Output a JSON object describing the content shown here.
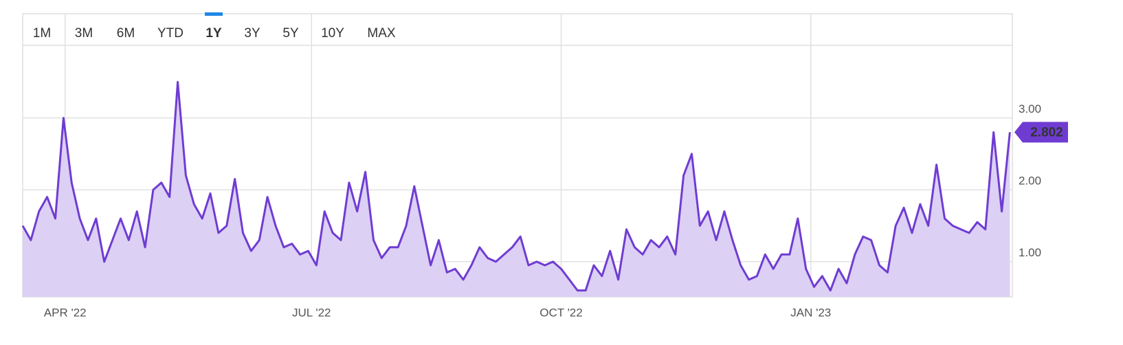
{
  "chart_data": {
    "type": "area",
    "range_buttons": [
      "1M",
      "3M",
      "6M",
      "YTD",
      "1Y",
      "3Y",
      "5Y",
      "10Y",
      "MAX"
    ],
    "active_button": 4,
    "series": [
      {
        "color": "#6f3cd2",
        "fill": "#dcd0f4",
        "values": [
          1.5,
          1.3,
          1.7,
          1.9,
          1.6,
          3.0,
          2.1,
          1.6,
          1.3,
          1.6,
          1.0,
          1.3,
          1.6,
          1.3,
          1.7,
          1.2,
          2.0,
          2.1,
          1.9,
          3.5,
          2.2,
          1.8,
          1.6,
          1.95,
          1.4,
          1.5,
          2.15,
          1.4,
          1.15,
          1.3,
          1.9,
          1.5,
          1.2,
          1.25,
          1.1,
          1.15,
          0.95,
          1.7,
          1.4,
          1.3,
          2.1,
          1.7,
          2.25,
          1.3,
          1.05,
          1.2,
          1.2,
          1.5,
          2.05,
          1.5,
          0.95,
          1.3,
          0.85,
          0.9,
          0.75,
          0.95,
          1.2,
          1.05,
          1.0,
          1.1,
          1.2,
          1.35,
          0.95,
          1.0,
          0.95,
          1.0,
          0.9,
          0.75,
          0.6,
          0.6,
          0.95,
          0.8,
          1.15,
          0.75,
          1.45,
          1.2,
          1.1,
          1.3,
          1.2,
          1.35,
          1.1,
          2.2,
          2.5,
          1.5,
          1.7,
          1.3,
          1.7,
          1.3,
          0.95,
          0.75,
          0.8,
          1.1,
          0.9,
          1.1,
          1.1,
          1.6,
          0.9,
          0.65,
          0.8,
          0.6,
          0.9,
          0.7,
          1.1,
          1.35,
          1.3,
          0.95,
          0.85,
          1.5,
          1.75,
          1.4,
          1.8,
          1.5,
          2.35,
          1.6,
          1.5,
          1.45,
          1.4,
          1.55,
          1.45,
          2.8,
          1.7,
          2.802
        ],
        "value_labels": [
          null,
          null,
          null,
          null,
          null,
          null,
          null,
          null,
          null,
          null,
          null,
          null,
          null,
          null,
          null,
          null,
          null,
          null,
          null,
          null,
          null,
          null,
          null,
          null,
          null,
          null,
          null,
          null,
          null,
          null,
          null,
          null,
          null,
          null,
          null,
          null,
          null,
          null,
          null,
          null,
          null,
          null,
          null,
          null,
          null,
          null,
          null,
          null,
          null,
          null,
          null,
          null,
          null,
          null,
          null,
          null,
          null,
          null,
          null,
          null,
          null,
          null,
          null,
          null,
          null,
          null,
          null,
          null,
          null,
          null,
          null,
          null,
          null,
          null,
          null,
          null,
          null,
          null,
          null,
          null,
          null,
          null,
          null,
          null,
          null,
          null,
          null,
          null,
          null,
          null,
          null,
          null,
          null,
          null,
          null,
          null,
          null,
          null,
          null,
          null,
          null,
          null,
          null,
          null,
          null,
          null,
          null,
          null,
          null,
          null,
          null,
          null,
          null,
          null,
          null,
          null,
          null,
          null,
          null,
          null,
          null,
          "2.802"
        ]
      }
    ],
    "xlim": [
      0,
      121.3
    ],
    "xticks": [
      {
        "value": 5.2,
        "label": "APR '22"
      },
      {
        "value": 35.4,
        "label": "JUL '22"
      },
      {
        "value": 66.0,
        "label": "OCT '22"
      },
      {
        "value": 96.6,
        "label": "JAN '23"
      }
    ],
    "ylim": [
      0.51,
      4.45
    ],
    "yticks": [
      {
        "value": 1,
        "label": "1.00"
      },
      {
        "value": 2,
        "label": "2.00"
      },
      {
        "value": 3,
        "label": "3.00"
      }
    ],
    "grid": true
  }
}
